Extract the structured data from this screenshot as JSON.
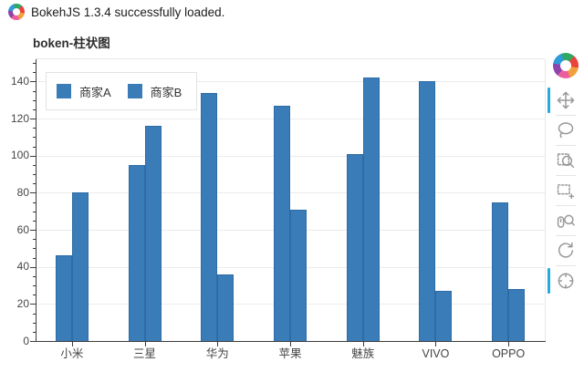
{
  "header": {
    "status_text": "BokehJS 1.3.4 successfully loaded.",
    "logo": "bokeh-logo"
  },
  "chart_data": {
    "type": "bar",
    "title": "boken-柱状图",
    "categories": [
      "小米",
      "三星",
      "华为",
      "苹果",
      "魅族",
      "VIVO",
      "OPPO"
    ],
    "series": [
      {
        "name": "商家A",
        "values": [
          46,
          95,
          134,
          127,
          101,
          140,
          75
        ]
      },
      {
        "name": "商家B",
        "values": [
          80,
          116,
          36,
          71,
          142,
          27,
          28
        ]
      }
    ],
    "xlabel": "",
    "ylabel": "",
    "ylim": [
      0,
      152
    ],
    "yticks": [
      0,
      20,
      40,
      60,
      80,
      100,
      120,
      140
    ],
    "minor_tick_step": 5,
    "grid": "horizontal",
    "legend_position": "top_left",
    "bar_color": "#3a7cb8",
    "bar_border_color": "#2e6ca5"
  },
  "toolbar": {
    "logo": "bokeh-logo",
    "active_color": "#26a9e0",
    "tools": [
      {
        "name": "pan",
        "label": "Pan",
        "active": true
      },
      {
        "name": "lasso-select",
        "label": "Lasso Select",
        "active": false
      },
      {
        "name": "box-zoom",
        "label": "Box Zoom",
        "active": false
      },
      {
        "name": "box-select",
        "label": "Box Select",
        "active": false
      },
      {
        "name": "wheel-zoom",
        "label": "Wheel Zoom",
        "active": false
      },
      {
        "name": "reset",
        "label": "Reset",
        "active": false
      },
      {
        "name": "hover",
        "label": "Hover",
        "active": true
      }
    ]
  },
  "colors": {
    "axis": "#3b3b3b",
    "grid": "#ececec",
    "tick_label": "#454545",
    "plot_border": "#e7e7e7"
  }
}
